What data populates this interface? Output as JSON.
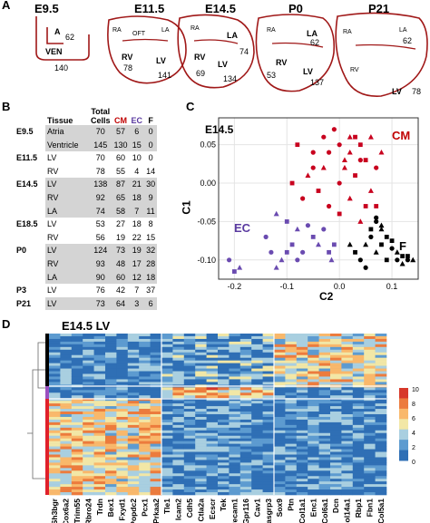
{
  "panelA": {
    "letter": "A",
    "hearts": [
      {
        "stage": "E9.5",
        "labels": [
          "A",
          "VEN"
        ],
        "numbers": [
          "62",
          "140"
        ]
      },
      {
        "stage": "E11.5",
        "labels": [
          "RA",
          "OFT",
          "LA",
          "RV",
          "LV"
        ],
        "numbers": [
          "78",
          "141"
        ]
      },
      {
        "stage": "E14.5",
        "labels": [
          "RA",
          "LA",
          "RV",
          "LV"
        ],
        "numbers": [
          "74",
          "69",
          "134"
        ]
      },
      {
        "stage": "P0",
        "labels": [
          "RA",
          "LA",
          "RV",
          "LV"
        ],
        "numbers": [
          "62",
          "53",
          "137"
        ]
      },
      {
        "stage": "P21",
        "labels": [
          "RA",
          "LA",
          "RV",
          "LV"
        ],
        "numbers": [
          "62",
          "78"
        ]
      }
    ]
  },
  "panelB": {
    "letter": "B",
    "headers": {
      "tissue": "Tissue",
      "total": "Total",
      "cells": "Cells",
      "cm": "CM",
      "ec": "EC",
      "f": "F"
    },
    "rows": [
      {
        "stage": "E9.5",
        "tissue": "Atria",
        "total": "70",
        "cm": "57",
        "ec": "6",
        "f": "0",
        "grey": true
      },
      {
        "stage": "",
        "tissue": "Ventricle",
        "total": "145",
        "cm": "130",
        "ec": "15",
        "f": "0",
        "grey": true
      },
      {
        "stage": "E11.5",
        "tissue": "LV",
        "total": "70",
        "cm": "60",
        "ec": "10",
        "f": "0",
        "grey": false
      },
      {
        "stage": "",
        "tissue": "RV",
        "total": "78",
        "cm": "55",
        "ec": "4",
        "f": "14",
        "grey": false
      },
      {
        "stage": "E14.5",
        "tissue": "LV",
        "total": "138",
        "cm": "87",
        "ec": "21",
        "f": "30",
        "grey": true
      },
      {
        "stage": "",
        "tissue": "RV",
        "total": "92",
        "cm": "65",
        "ec": "18",
        "f": "9",
        "grey": true
      },
      {
        "stage": "",
        "tissue": "LA",
        "total": "74",
        "cm": "58",
        "ec": "7",
        "f": "11",
        "grey": true
      },
      {
        "stage": "E18.5",
        "tissue": "LV",
        "total": "53",
        "cm": "27",
        "ec": "18",
        "f": "8",
        "grey": false
      },
      {
        "stage": "",
        "tissue": "RV",
        "total": "56",
        "cm": "19",
        "ec": "22",
        "f": "15",
        "grey": false
      },
      {
        "stage": "P0",
        "tissue": "LV",
        "total": "124",
        "cm": "73",
        "ec": "19",
        "f": "32",
        "grey": true
      },
      {
        "stage": "",
        "tissue": "RV",
        "total": "93",
        "cm": "48",
        "ec": "17",
        "f": "28",
        "grey": true
      },
      {
        "stage": "",
        "tissue": "LA",
        "total": "90",
        "cm": "60",
        "ec": "12",
        "f": "18",
        "grey": true
      },
      {
        "stage": "P3",
        "tissue": "LV",
        "total": "76",
        "cm": "42",
        "ec": "7",
        "f": "37",
        "grey": false
      },
      {
        "stage": "P21",
        "tissue": "LV",
        "total": "73",
        "cm": "64",
        "ec": "3",
        "f": "6",
        "grey": true
      }
    ]
  },
  "panelC": {
    "letter": "C",
    "inset_title": "E14.5",
    "xlabel": "C2",
    "ylabel": "C1",
    "cluster_labels": {
      "cm": "CM",
      "ec": "EC",
      "f": "F"
    },
    "colors": {
      "cm": "#c8001e",
      "ec": "#6a4bb0",
      "f": "#000000"
    },
    "xticks": [
      "-0.2",
      "-0.1",
      "0.0",
      "0.1"
    ],
    "yticks": [
      "0.05",
      "0.00",
      "-0.05",
      "-0.10"
    ]
  },
  "chart_data": {
    "type": "scatter",
    "title": "E14.5",
    "xlabel": "C2",
    "ylabel": "C1",
    "xlim": [
      -0.23,
      0.15
    ],
    "ylim": [
      -0.125,
      0.085
    ],
    "series": [
      {
        "name": "CM",
        "color": "#c8001e",
        "points": [
          [
            0.0,
            0.05
          ],
          [
            0.02,
            0.06
          ],
          [
            0.04,
            0.05
          ],
          [
            -0.02,
            0.04
          ],
          [
            0.01,
            0.03
          ],
          [
            0.05,
            0.03
          ],
          [
            -0.05,
            0.04
          ],
          [
            -0.03,
            0.02
          ],
          [
            0.03,
            0.01
          ],
          [
            0.07,
            0.02
          ],
          [
            -0.06,
            0.01
          ],
          [
            -0.04,
            -0.01
          ],
          [
            0.0,
            0.0
          ],
          [
            0.06,
            -0.01
          ],
          [
            -0.09,
            0.0
          ],
          [
            -0.07,
            -0.02
          ],
          [
            0.02,
            -0.02
          ],
          [
            0.05,
            -0.03
          ],
          [
            -0.02,
            -0.03
          ],
          [
            0.04,
            -0.05
          ],
          [
            0.0,
            -0.04
          ],
          [
            -0.05,
            0.02
          ],
          [
            0.08,
            0.04
          ],
          [
            0.03,
            0.06
          ],
          [
            -0.01,
            0.07
          ],
          [
            0.06,
            0.06
          ],
          [
            -0.08,
            0.05
          ],
          [
            0.04,
            0.03
          ],
          [
            0.02,
            0.04
          ],
          [
            0.07,
            -0.03
          ],
          [
            -0.03,
            0.06
          ],
          [
            0.01,
            0.02
          ]
        ]
      },
      {
        "name": "EC",
        "color": "#6a4bb0",
        "points": [
          [
            -0.21,
            -0.1
          ],
          [
            -0.19,
            -0.11
          ],
          [
            -0.2,
            -0.115
          ],
          [
            -0.13,
            -0.09
          ],
          [
            -0.11,
            -0.1
          ],
          [
            -0.1,
            -0.09
          ],
          [
            -0.08,
            -0.1
          ],
          [
            -0.12,
            -0.11
          ],
          [
            -0.09,
            -0.08
          ],
          [
            -0.14,
            -0.07
          ],
          [
            -0.08,
            -0.06
          ],
          [
            -0.05,
            -0.07
          ],
          [
            -0.06,
            -0.055
          ],
          [
            -0.04,
            -0.08
          ],
          [
            -0.1,
            -0.05
          ],
          [
            -0.07,
            -0.09
          ],
          [
            -0.015,
            -0.1
          ],
          [
            -0.01,
            -0.08
          ],
          [
            -0.03,
            -0.06
          ],
          [
            -0.12,
            -0.04
          ],
          [
            -0.02,
            -0.09
          ]
        ]
      },
      {
        "name": "F",
        "color": "#000000",
        "points": [
          [
            0.04,
            -0.1
          ],
          [
            0.05,
            -0.08
          ],
          [
            0.06,
            -0.06
          ],
          [
            0.07,
            -0.05
          ],
          [
            0.08,
            -0.06
          ],
          [
            0.09,
            -0.07
          ],
          [
            0.1,
            -0.085
          ],
          [
            0.11,
            -0.09
          ],
          [
            0.12,
            -0.095
          ],
          [
            0.13,
            -0.1
          ],
          [
            0.14,
            -0.1
          ],
          [
            0.03,
            -0.09
          ],
          [
            0.05,
            -0.11
          ],
          [
            0.07,
            -0.09
          ],
          [
            0.08,
            -0.08
          ],
          [
            0.11,
            -0.1
          ],
          [
            0.12,
            -0.105
          ],
          [
            0.09,
            -0.1
          ],
          [
            0.06,
            -0.07
          ],
          [
            0.02,
            -0.08
          ],
          [
            0.1,
            -0.075
          ],
          [
            0.07,
            -0.045
          ],
          [
            0.08,
            -0.055
          ],
          [
            0.13,
            -0.095
          ]
        ]
      }
    ]
  },
  "panelD": {
    "letter": "D",
    "title": "E14.5 LV",
    "genes": [
      "Sh3bgr",
      "Cox6a2",
      "Trim55",
      "Rbro24",
      "Trdn",
      "Bex1",
      "Fxyd1",
      "Popdc2",
      "Pcx1",
      "Prkaa2",
      "Tle1",
      "Icam2",
      "Cdh5",
      "Ctla2a",
      "Ecscr",
      "Tek",
      "Pecam1",
      "Gpr116",
      "Cav1",
      "Rasgrp3",
      "Sox9",
      "Ptn",
      "Col1a1",
      "Enc1",
      "Col6a1",
      "Dcn",
      "Col14a1",
      "Rbp1",
      "Fbn1",
      "Col5a1"
    ],
    "legend_ticks": [
      "10",
      "8",
      "6",
      "4",
      "2",
      "0"
    ],
    "tree_marks": [
      "1",
      "2",
      "3"
    ]
  }
}
